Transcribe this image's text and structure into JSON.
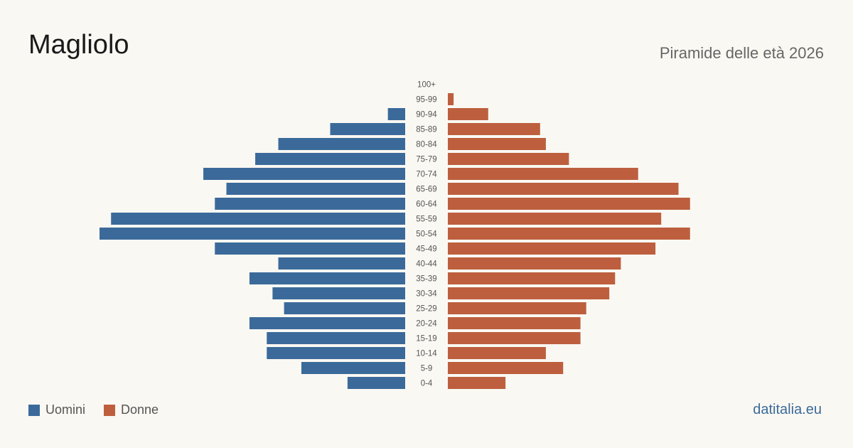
{
  "header": {
    "title": "Magliolo",
    "subtitle": "Piramide delle età 2026"
  },
  "legend": {
    "men_label": "Uomini",
    "women_label": "Donne"
  },
  "source": "datitalia.eu",
  "colors": {
    "men": "#3b6a9a",
    "women": "#bd5f3e",
    "background": "#faf8f3"
  },
  "chart_data": {
    "type": "bar",
    "orientation": "horizontal-pyramid",
    "categories": [
      "100+",
      "95-99",
      "90-94",
      "85-89",
      "80-84",
      "75-79",
      "70-74",
      "65-69",
      "60-64",
      "55-59",
      "50-54",
      "45-49",
      "40-44",
      "35-39",
      "30-34",
      "25-29",
      "20-24",
      "15-19",
      "10-14",
      "5-9",
      "0-4"
    ],
    "series": [
      {
        "name": "Uomini",
        "values": [
          0,
          0,
          3,
          13,
          22,
          26,
          35,
          31,
          33,
          51,
          53,
          33,
          22,
          27,
          23,
          21,
          27,
          24,
          24,
          18,
          10
        ]
      },
      {
        "name": "Donne",
        "values": [
          0,
          1,
          7,
          16,
          17,
          21,
          33,
          40,
          42,
          37,
          42,
          36,
          30,
          29,
          28,
          24,
          23,
          23,
          17,
          20,
          10
        ]
      }
    ],
    "xlim": [
      0,
      55
    ]
  }
}
